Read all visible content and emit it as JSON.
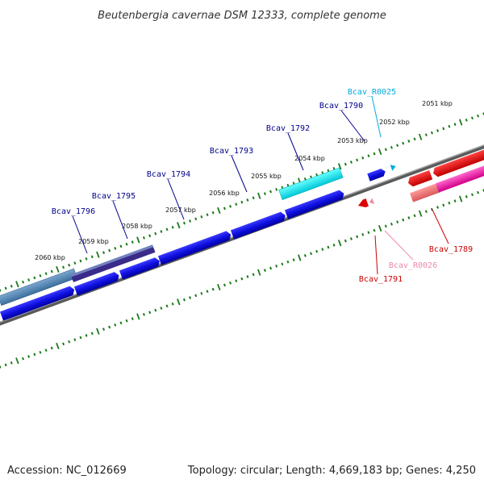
{
  "title": "Beutenbergia cavernae DSM 12333, complete genome",
  "footer": {
    "accession": "Accession: NC_012669",
    "topology": "Topology: circular; Length: 4,669,183 bp; Genes: 4,250"
  },
  "kbp_marks": [
    "2060 kbp",
    "2059 kbp",
    "2058 kbp",
    "2057 kbp",
    "2056 kbp",
    "2055 kbp",
    "2054 kbp",
    "2053 kbp",
    "2052 kbp",
    "2051 kbp"
  ],
  "genes": [
    {
      "label": "Bcav_1796",
      "color": "#00008b"
    },
    {
      "label": "Bcav_1795",
      "color": "#00008b"
    },
    {
      "label": "Bcav_1794",
      "color": "#00008b"
    },
    {
      "label": "Bcav_1793",
      "color": "#00008b"
    },
    {
      "label": "Bcav_1792",
      "color": "#00008b"
    },
    {
      "label": "Bcav_1790",
      "color": "#00008b"
    },
    {
      "label": "Bcav_R0025",
      "color": "#00aadd"
    },
    {
      "label": "Bcav_1789",
      "color": "#cc0000"
    },
    {
      "label": "Bcav_R0026",
      "color": "#ee88aa"
    },
    {
      "label": "Bcav_1791",
      "color": "#cc0000"
    }
  ]
}
